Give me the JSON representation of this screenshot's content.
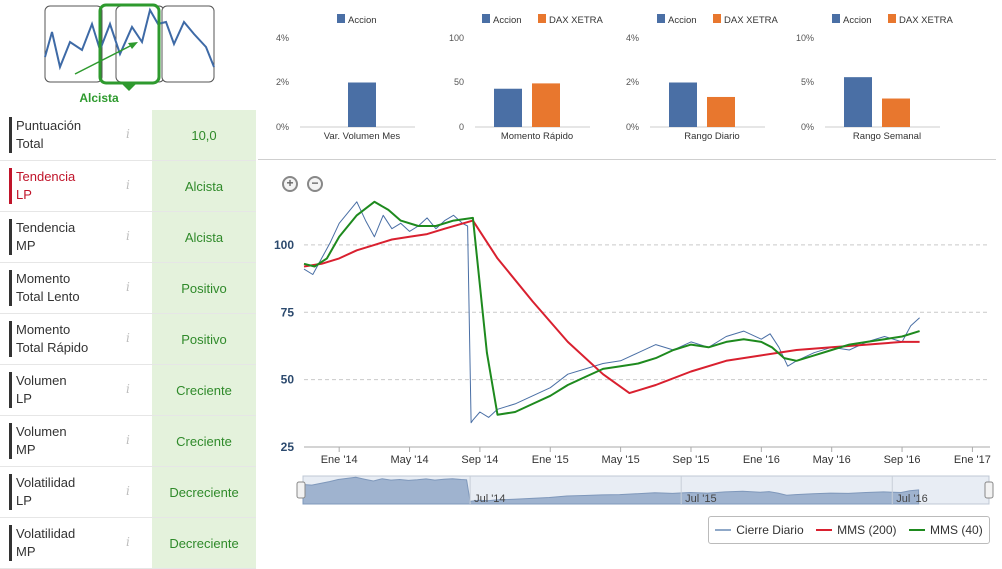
{
  "badge": {
    "label": "Alcista"
  },
  "indicators": [
    {
      "label_line1": "Puntuación",
      "label_line2": "Total",
      "value": "10,0",
      "highlight": false
    },
    {
      "label_line1": "Tendencia",
      "label_line2": "LP",
      "value": "Alcista",
      "highlight": true
    },
    {
      "label_line1": "Tendencia",
      "label_line2": "MP",
      "value": "Alcista",
      "highlight": false
    },
    {
      "label_line1": "Momento",
      "label_line2": "Total Lento",
      "value": "Positivo",
      "highlight": false
    },
    {
      "label_line1": "Momento",
      "label_line2": "Total Rápido",
      "value": "Positivo",
      "highlight": false
    },
    {
      "label_line1": "Volumen",
      "label_line2": "LP",
      "value": "Creciente",
      "highlight": false
    },
    {
      "label_line1": "Volumen",
      "label_line2": "MP",
      "value": "Creciente",
      "highlight": false
    },
    {
      "label_line1": "Volatilidad",
      "label_line2": "LP",
      "value": "Decreciente",
      "highlight": false
    },
    {
      "label_line1": "Volatilidad",
      "label_line2": "MP",
      "value": "Decreciente",
      "highlight": false
    }
  ],
  "info_glyph": "i",
  "colors": {
    "accion": "#4a6fa5",
    "dax": "#e8772e",
    "mms200": "#d9202f",
    "mms40": "#1e8a1e",
    "close": "#4a6fa5",
    "green_text": "#2f8a2a",
    "green_bg": "#e4f2dc"
  },
  "mini_charts": [
    {
      "title": "Var. Volumen Mes",
      "legend": [
        "Accion"
      ],
      "ymax_label": "4%",
      "ymid_label": "2%",
      "ymin_label": "0%",
      "ymax": 4,
      "values": [
        2.0
      ]
    },
    {
      "title": "Momento Rápido",
      "legend": [
        "Accion",
        "DAX XETRA"
      ],
      "ymax_label": "100",
      "ymid_label": "50",
      "ymin_label": "0",
      "ymax": 100,
      "values": [
        43,
        49
      ]
    },
    {
      "title": "Rango Diario",
      "legend": [
        "Accion",
        "DAX XETRA"
      ],
      "ymax_label": "4%",
      "ymid_label": "2%",
      "ymin_label": "0%",
      "ymax": 4,
      "values": [
        2.0,
        1.35
      ]
    },
    {
      "title": "Rango Semanal",
      "legend": [
        "Accion",
        "DAX XETRA"
      ],
      "ymax_label": "10%",
      "ymid_label": "5%",
      "ymin_label": "0%",
      "ymax": 10,
      "values": [
        5.6,
        3.2
      ]
    }
  ],
  "zoom": {
    "in": "+",
    "out": "−"
  },
  "chart_data": {
    "type": "line",
    "y_ticks": [
      25,
      50,
      75,
      100
    ],
    "ylim": [
      25,
      120
    ],
    "x_ticks": [
      "Ene '14",
      "May '14",
      "Sep '14",
      "Ene '15",
      "May '15",
      "Sep '15",
      "Ene '16",
      "May '16",
      "Sep '16",
      "Ene '17"
    ],
    "x_tick_months": [
      2,
      6,
      10,
      14,
      18,
      22,
      26,
      30,
      34,
      38
    ],
    "xlim_months": [
      0,
      39
    ],
    "series": [
      {
        "name": "Cierre Diario",
        "color": "#4a6fa5",
        "x": [
          0,
          0.5,
          1,
          1.5,
          2,
          2.5,
          3,
          3.5,
          4,
          4.5,
          5,
          5.5,
          6,
          6.5,
          7,
          7.5,
          8,
          8.5,
          9,
          9.3,
          9.5,
          9.6,
          10,
          10.5,
          11,
          12,
          13,
          14,
          15,
          16,
          17,
          18,
          19,
          20,
          21,
          22,
          23,
          24,
          25,
          26,
          26.5,
          27,
          27.5,
          28,
          29,
          30,
          31,
          32,
          33,
          34,
          34.5,
          35
        ],
        "y": [
          91,
          89,
          95,
          101,
          108,
          112,
          116,
          109,
          103,
          111,
          106,
          108,
          105,
          107,
          110,
          106,
          109,
          111,
          108,
          107,
          34,
          35,
          38,
          36,
          39,
          41,
          44,
          47,
          52,
          54,
          56,
          57,
          60,
          63,
          61,
          64,
          62,
          66,
          68,
          65,
          67,
          62,
          55,
          57,
          60,
          62,
          61,
          64,
          66,
          64,
          70,
          73
        ]
      },
      {
        "name": "MMS (200)",
        "color": "#d9202f",
        "x": [
          0,
          1,
          2,
          3,
          4,
          5,
          6,
          7,
          8,
          9.6,
          11,
          13,
          15,
          17,
          18.5,
          20,
          22,
          24,
          26,
          28,
          30,
          32,
          34,
          35
        ],
        "y": [
          92,
          93,
          95,
          98,
          100,
          102,
          103,
          104,
          106,
          109,
          95,
          79,
          64,
          52,
          45,
          48,
          53,
          57,
          59,
          61,
          62,
          63,
          64,
          64
        ]
      },
      {
        "name": "MMS (40)",
        "color": "#1e8a1e",
        "x": [
          0,
          0.6,
          1.3,
          2,
          3,
          4,
          4.8,
          5.5,
          6.5,
          7.5,
          8.5,
          9.6,
          10.4,
          11,
          12,
          13,
          14,
          15,
          16,
          17,
          18,
          19,
          20,
          21,
          22,
          23,
          24,
          25,
          26,
          26.6,
          27.3,
          28,
          29,
          30,
          31,
          32,
          33,
          34,
          35
        ],
        "y": [
          93,
          92,
          95,
          103,
          111,
          116,
          113,
          109,
          107,
          107,
          109,
          110,
          60,
          37,
          38,
          41,
          44,
          48,
          51,
          54,
          55,
          56,
          58,
          61,
          63,
          62,
          64,
          65,
          64,
          62,
          58,
          57,
          59,
          61,
          63,
          64,
          65,
          66,
          68
        ]
      }
    ]
  },
  "navigator": {
    "labels": [
      "Jul '14",
      "Jul '15",
      "Jul '16"
    ]
  },
  "legend": [
    {
      "name": "Cierre Diario",
      "color": "#8fa8c8"
    },
    {
      "name": "MMS (200)",
      "color": "#d9202f"
    },
    {
      "name": "MMS (40)",
      "color": "#1e8a1e"
    }
  ]
}
